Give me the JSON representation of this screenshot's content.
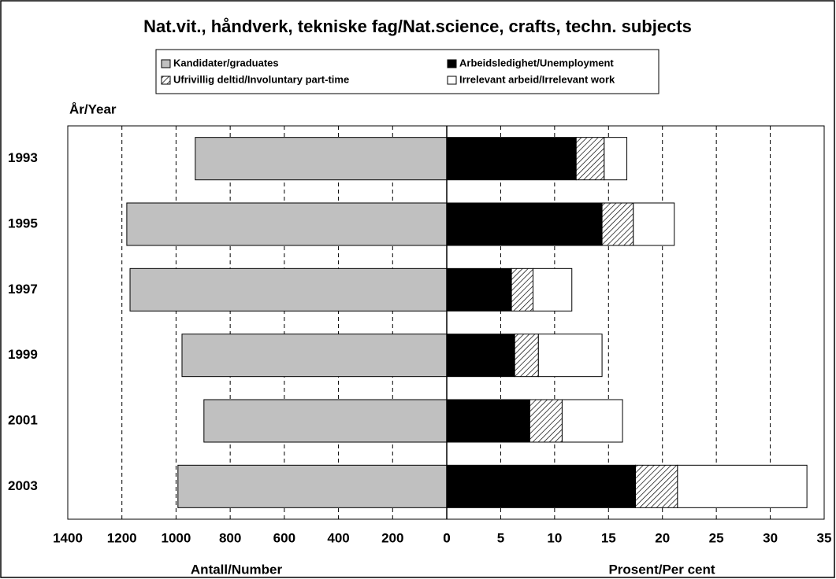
{
  "chart_data": [
    {
      "type": "bar",
      "title": "Nat.vit., håndverk, tekniske fag/Nat.science, crafts, techn. subjects",
      "ylabel": "År/Year",
      "categories": [
        "1993",
        "1995",
        "1997",
        "1999",
        "2001",
        "2003"
      ],
      "series": [
        {
          "name": "Kandidater/graduates",
          "color": "#c0c0c0",
          "values": [
            929,
            1182,
            1170,
            978,
            897,
            993
          ]
        }
      ],
      "xlabel": "Antall/Number",
      "xlim": [
        1400,
        0
      ],
      "xticks": [
        1400,
        1200,
        1000,
        800,
        600,
        400,
        200,
        0
      ],
      "grid": true
    },
    {
      "type": "stacked_bar",
      "series": [
        {
          "name": "Arbeidsledighet/Unemployment",
          "color": "#000000",
          "values": [
            12.0,
            14.4,
            6.0,
            6.3,
            7.7,
            17.5
          ]
        },
        {
          "name": "Ufrivillig deltid/Involuntary part-time",
          "color": "#000000",
          "pattern": "hatch",
          "values": [
            2.6,
            2.9,
            2.0,
            2.2,
            3.0,
            3.9
          ]
        },
        {
          "name": "Irrelevant arbeid/Irrelevant work",
          "color": "#ffffff",
          "values": [
            2.1,
            3.8,
            3.6,
            5.9,
            5.6,
            12.0
          ]
        }
      ],
      "xlabel": "Prosent/Per cent",
      "xlim": [
        0,
        35
      ],
      "xticks": [
        0,
        5,
        10,
        15,
        20,
        25,
        30,
        35
      ],
      "grid": true
    }
  ]
}
